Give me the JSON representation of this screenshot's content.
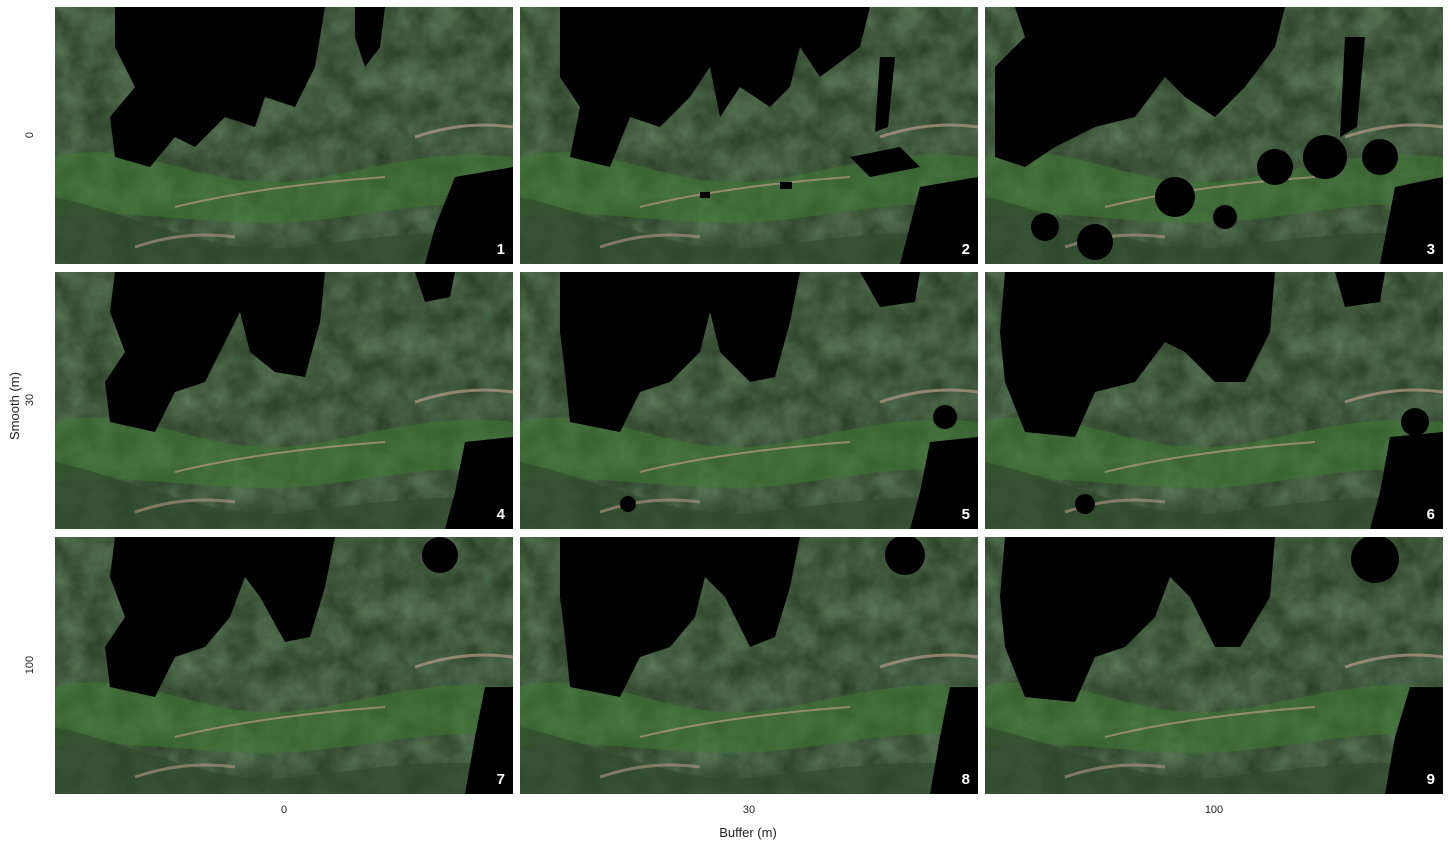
{
  "figure": {
    "x_axis_title": "Buffer (m)",
    "y_axis_title": "Smooth (m)",
    "column_ticks": [
      "0",
      "30",
      "100"
    ],
    "row_ticks": [
      "0",
      "30",
      "100"
    ],
    "panels": [
      {
        "label": "1",
        "buffer": "0",
        "smooth": "0"
      },
      {
        "label": "2",
        "buffer": "30",
        "smooth": "0"
      },
      {
        "label": "3",
        "buffer": "100",
        "smooth": "0"
      },
      {
        "label": "4",
        "buffer": "0",
        "smooth": "30"
      },
      {
        "label": "5",
        "buffer": "30",
        "smooth": "30"
      },
      {
        "label": "6",
        "buffer": "100",
        "smooth": "30"
      },
      {
        "label": "7",
        "buffer": "0",
        "smooth": "100"
      },
      {
        "label": "8",
        "buffer": "30",
        "smooth": "100"
      },
      {
        "label": "9",
        "buffer": "100",
        "smooth": "100"
      }
    ]
  },
  "colors": {
    "terrain_dark": "#1c2a1c",
    "terrain_mid": "#2f4a2c",
    "meadow_green": "#3f7a34",
    "settlement": "#b59a86",
    "mask": "#000000",
    "background": "#ffffff"
  }
}
